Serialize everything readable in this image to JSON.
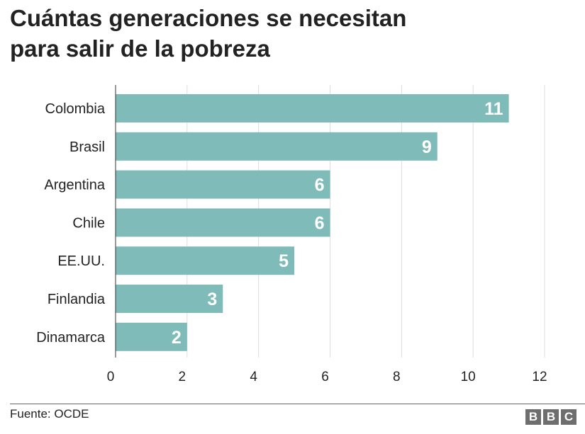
{
  "header": {
    "title_line1": "Cuántas generaciones se necesitan",
    "title_line2": "para salir de la pobreza"
  },
  "footer": {
    "source": "Fuente: OCDE",
    "logo": [
      "B",
      "B",
      "C"
    ]
  },
  "colors": {
    "bar": "#7fbcb9",
    "grid": "#dddddd",
    "axis": "#333333",
    "text": "#222222",
    "bar_label": "#ffffff"
  },
  "chart_data": {
    "type": "bar",
    "orientation": "horizontal",
    "title": "Cuántas generaciones se necesitan para salir de la pobreza",
    "categories": [
      "Colombia",
      "Brasil",
      "Argentina",
      "Chile",
      "EE.UU.",
      "Finlandia",
      "Dinamarca"
    ],
    "values": [
      11,
      9,
      6,
      6,
      5,
      3,
      2
    ],
    "xlabel": "",
    "ylabel": "",
    "xlim": [
      0,
      12
    ],
    "xticks": [
      0,
      2,
      4,
      6,
      8,
      10,
      12
    ],
    "grid": true,
    "data_labels": true
  }
}
